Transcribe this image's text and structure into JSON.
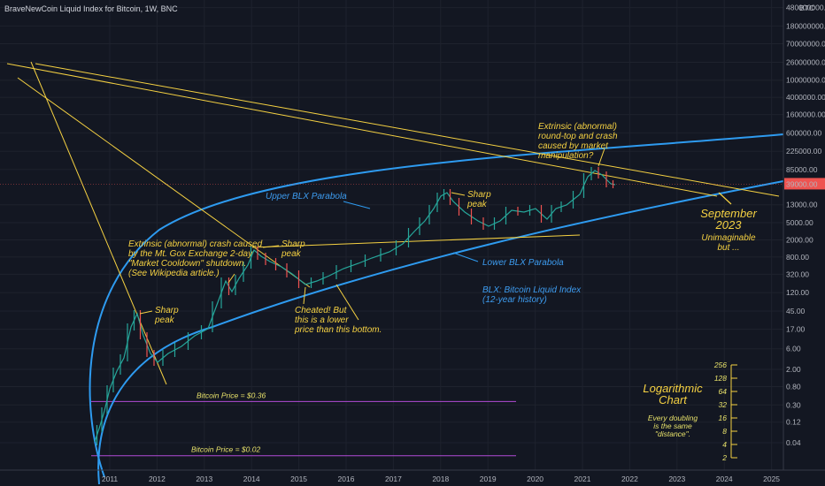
{
  "title": "BraveNewCoin Liquid Index for Bitcoin, 1W, BNC",
  "currency": "BTC",
  "price_tag": "39000.00",
  "colors": {
    "background": "#131722",
    "yellow": "#f5d142",
    "blue": "#2e9bf0",
    "purple": "#b24bd6",
    "candle_up": "#26a69a",
    "candle_down": "#ef5350",
    "price_tag": "#ef5350"
  },
  "chart_data": {
    "type": "line",
    "y_scale": "log",
    "x": [
      "2011",
      "2012",
      "2013",
      "2014",
      "2015",
      "2016",
      "2017",
      "2018",
      "2019",
      "2020",
      "2021",
      "2022",
      "2023",
      "2024",
      "2025"
    ],
    "y_ticks": [
      "480000000.00",
      "180000000.00",
      "70000000.00",
      "26000000.00",
      "10000000.00",
      "4000000.00",
      "1600000.00",
      "600000.00",
      "225000.00",
      "85000.00",
      "13000.00",
      "5000.00",
      "2000.00",
      "800.00",
      "320.00",
      "120.00",
      "45.00",
      "17.00",
      "6.00",
      "2.00",
      "0.80",
      "0.30",
      "0.12",
      "0.04"
    ],
    "series": [
      {
        "name": "BLX",
        "points": [
          [
            "2010.7",
            0.05
          ],
          [
            "2011.05",
            1
          ],
          [
            "2011.45",
            30
          ],
          [
            "2011.8",
            3
          ],
          [
            "2012.5",
            8
          ],
          [
            "2013.3",
            140
          ],
          [
            "2013.95",
            1000
          ],
          [
            "2015.1",
            200
          ],
          [
            "2016.0",
            400
          ],
          [
            "2017.0",
            1000
          ],
          [
            "2017.9",
            19000
          ],
          [
            "2018.95",
            3500
          ],
          [
            "2019.5",
            12000
          ],
          [
            "2020.2",
            5000
          ],
          [
            "2020.95",
            30000
          ],
          [
            "2021.3",
            60000
          ],
          [
            "2021.5",
            40000
          ]
        ]
      }
    ],
    "hlines": [
      {
        "label": "Bitcoin Price = $0.36",
        "value": 0.36
      },
      {
        "label": "Bitcoin Price = $0.02",
        "value": 0.02
      }
    ],
    "annotations": {
      "upper_parabola": "Upper BLX Parabola",
      "lower_parabola": "Lower BLX Parabola",
      "sharp_peak_1": [
        "Sharp",
        "peak"
      ],
      "sharp_peak_2": [
        "Sharp",
        "peak"
      ],
      "sharp_peak_3": [
        "Sharp",
        "peak"
      ],
      "mtgox": [
        "Extrinsic (abnormal) crash caused",
        "by the Mt. Gox Exchange 2-day",
        "\"Market Cooldown\" shutdown.",
        "(See Wikipedia article.)"
      ],
      "cheated": [
        "Cheated!  But",
        "this is a lower",
        "price than this bottom."
      ],
      "extrinsic_top": [
        "Extrinsic (abnormal)",
        "round-top and crash",
        "caused by market",
        "manipulation?"
      ],
      "september": [
        "September",
        "2023"
      ],
      "unimaginable": [
        "Unimaginable",
        "but ..."
      ],
      "blx_label": [
        "BLX:  Bitcoin Liquid Index",
        "(12-year history)"
      ],
      "log_title": [
        "Logarithmic",
        "Chart"
      ],
      "log_note": [
        "Every doubling",
        "is the same",
        "\"distance\"."
      ],
      "log_scale": [
        "256",
        "128",
        "64",
        "32",
        "16",
        "8",
        "4",
        "2"
      ]
    }
  }
}
